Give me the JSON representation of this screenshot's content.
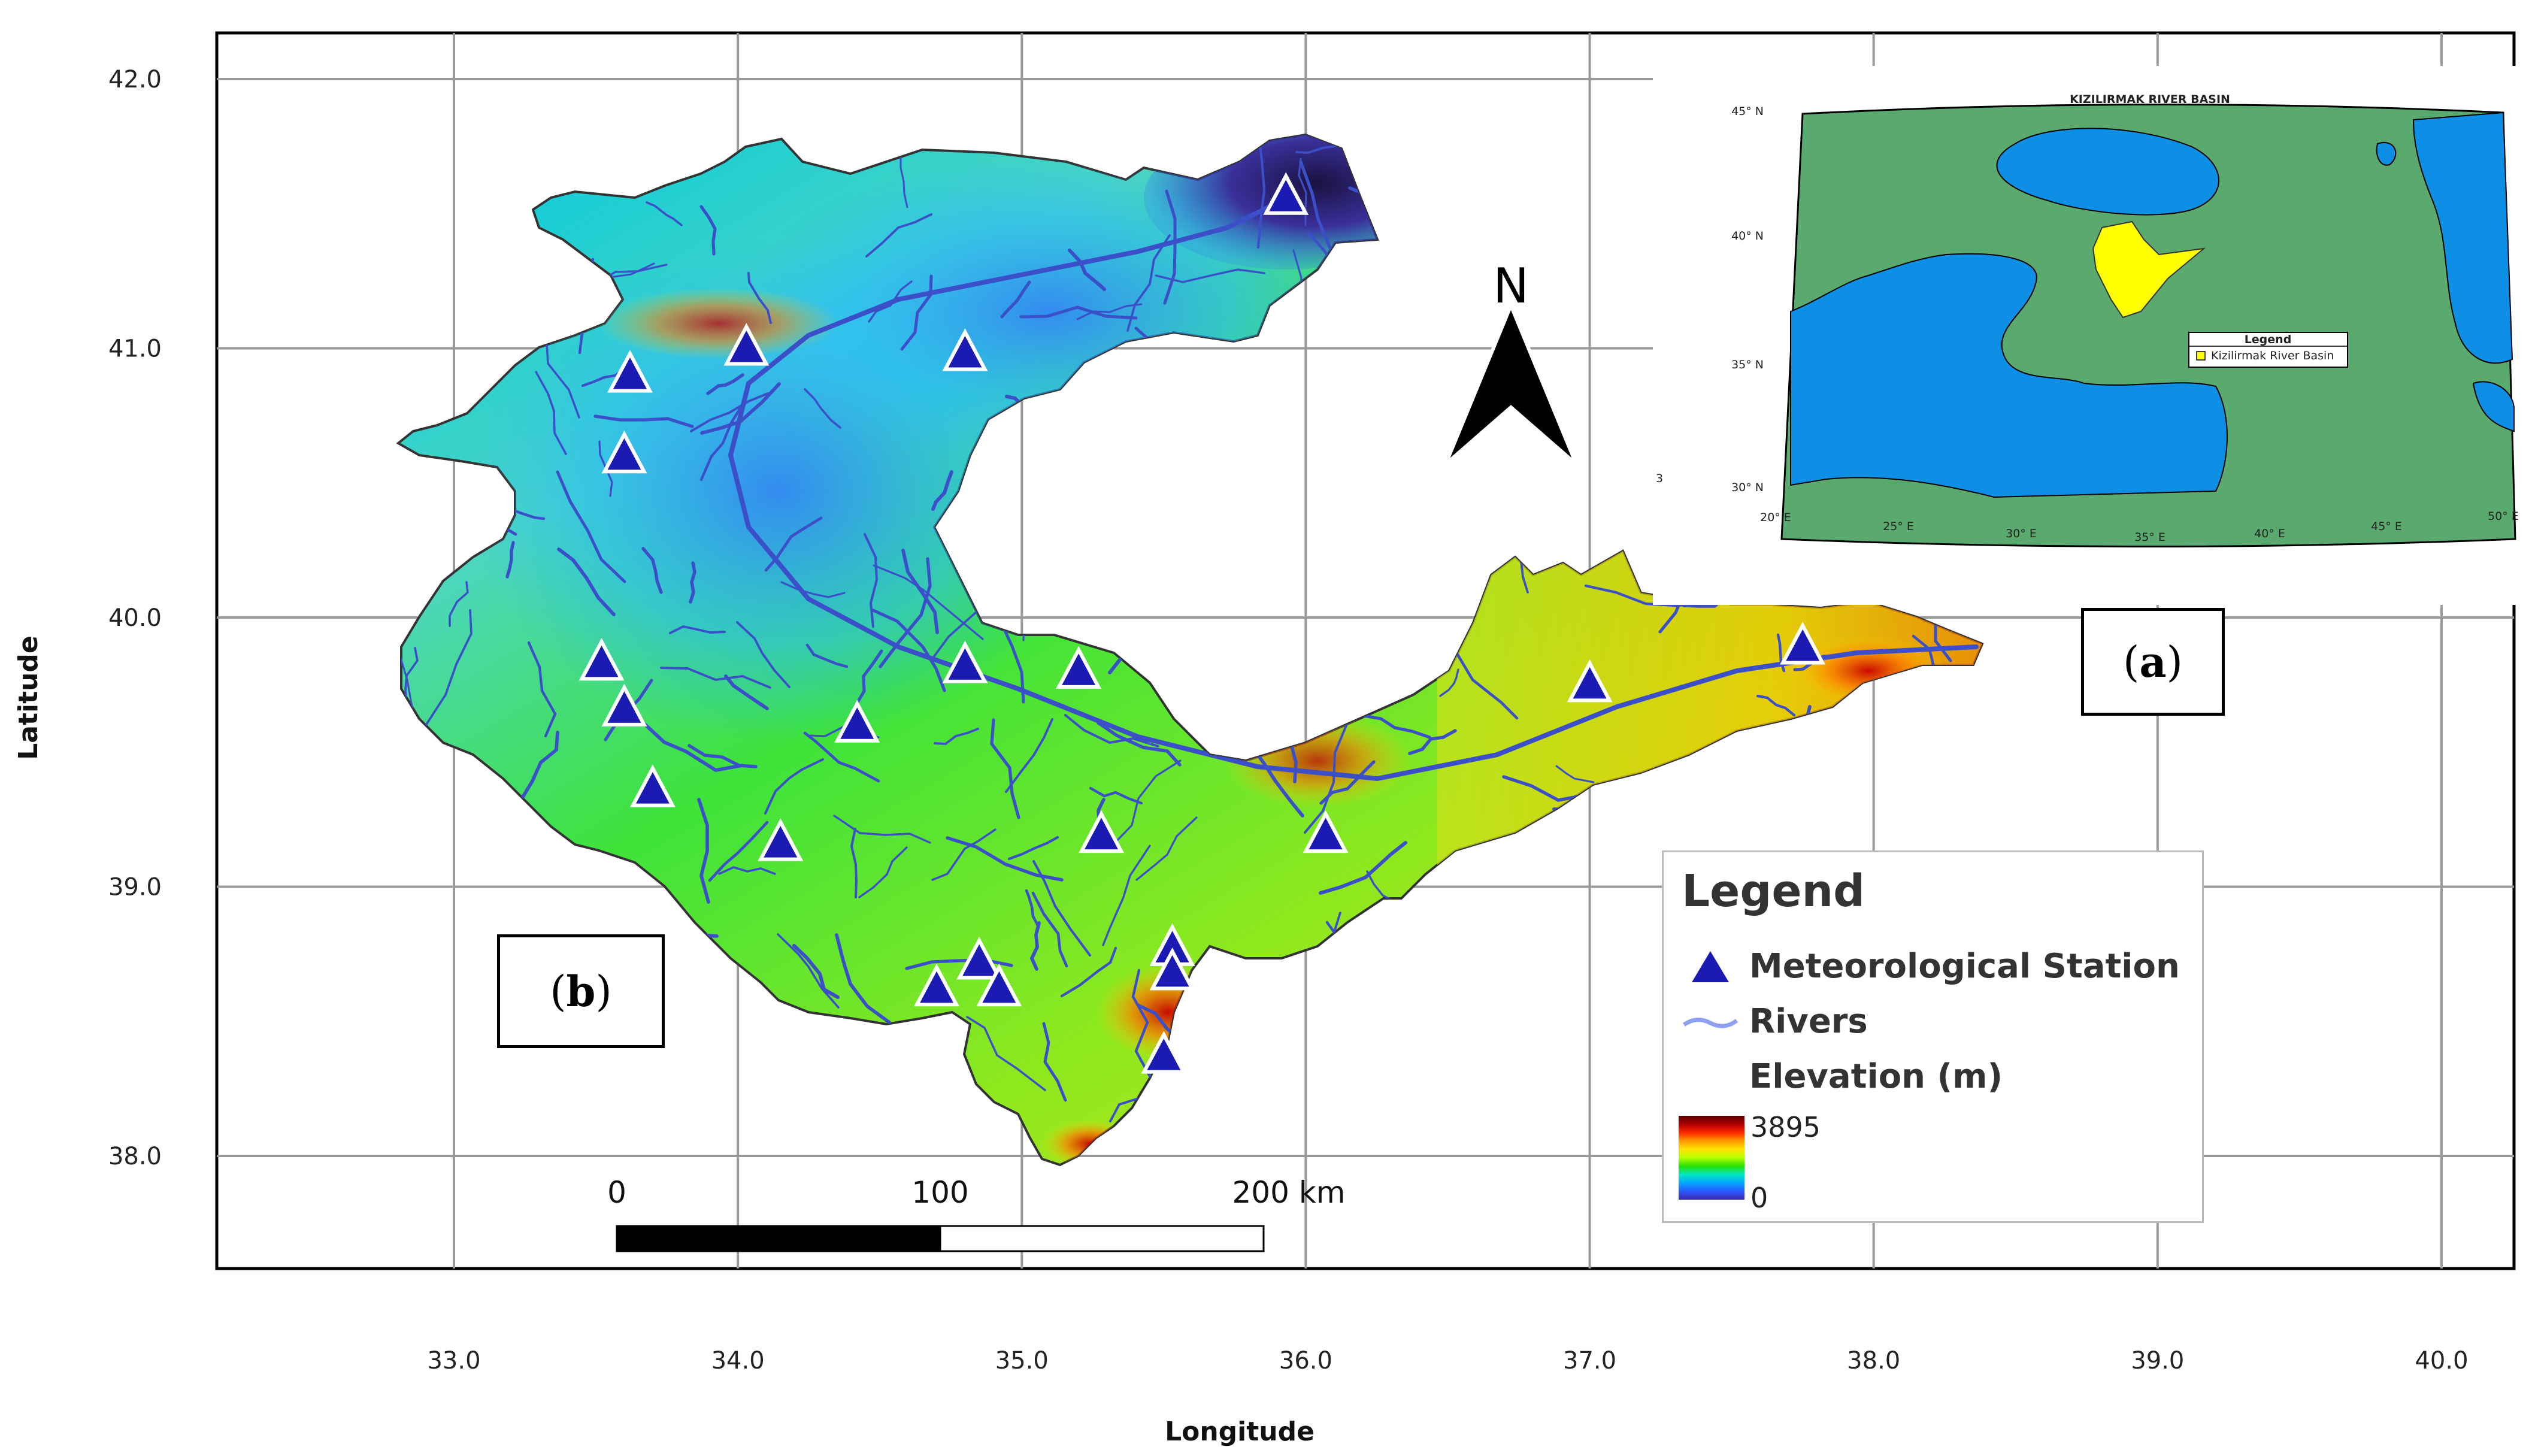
{
  "axes": {
    "x_title": "Longitude",
    "y_title": "Latitude",
    "x_ticks": [
      "33.0",
      "34.0",
      "35.0",
      "36.0",
      "37.0",
      "38.0",
      "39.0",
      "40.0"
    ],
    "y_ticks": [
      "42.0",
      "41.0",
      "40.0",
      "39.0",
      "38.0"
    ]
  },
  "north_arrow": {
    "label": "N"
  },
  "panel_labels": {
    "a": "a",
    "b": "b"
  },
  "scale_bar": {
    "labels": [
      "0",
      "100",
      "200 km"
    ]
  },
  "legend": {
    "title": "Legend",
    "station_label": "Meteorological Station",
    "rivers_label": "Rivers",
    "elevation_label": "Elevation (m)",
    "elevation_max": "3895",
    "elevation_min": "0"
  },
  "inset": {
    "title": "KIZILIRMAK RIVER BASIN",
    "lat_labels": [
      "45° N",
      "40° N",
      "35° N",
      "30° N"
    ],
    "lon_labels": [
      "20° E",
      "25° E",
      "30° E",
      "35° E",
      "40° E",
      "45° E",
      "50° E"
    ],
    "stray_mark": "3",
    "legend_title": "Legend",
    "legend_item": "Kizilirmak River Basin"
  },
  "stations": [
    {
      "lon": 35.93,
      "lat": 41.56
    },
    {
      "lon": 34.03,
      "lat": 41.0
    },
    {
      "lon": 34.8,
      "lat": 40.98
    },
    {
      "lon": 33.62,
      "lat": 40.9
    },
    {
      "lon": 33.6,
      "lat": 40.6
    },
    {
      "lon": 33.52,
      "lat": 39.83
    },
    {
      "lon": 33.6,
      "lat": 39.66
    },
    {
      "lon": 34.8,
      "lat": 39.82
    },
    {
      "lon": 35.2,
      "lat": 39.8
    },
    {
      "lon": 34.42,
      "lat": 39.6
    },
    {
      "lon": 33.7,
      "lat": 39.36
    },
    {
      "lon": 34.15,
      "lat": 39.16
    },
    {
      "lon": 35.28,
      "lat": 39.19
    },
    {
      "lon": 36.07,
      "lat": 39.19
    },
    {
      "lon": 37.0,
      "lat": 39.75
    },
    {
      "lon": 37.75,
      "lat": 39.89
    },
    {
      "lon": 35.53,
      "lat": 38.77
    },
    {
      "lon": 35.53,
      "lat": 38.68
    },
    {
      "lon": 34.85,
      "lat": 38.72
    },
    {
      "lon": 34.7,
      "lat": 38.62
    },
    {
      "lon": 34.92,
      "lat": 38.62
    },
    {
      "lon": 35.5,
      "lat": 38.37
    }
  ],
  "colors": {
    "station": "#1b1bb4",
    "river": "#3b4fc8",
    "ocean": "#0d8fe6",
    "land": "#5aa96f",
    "basin": "#ffff00"
  }
}
